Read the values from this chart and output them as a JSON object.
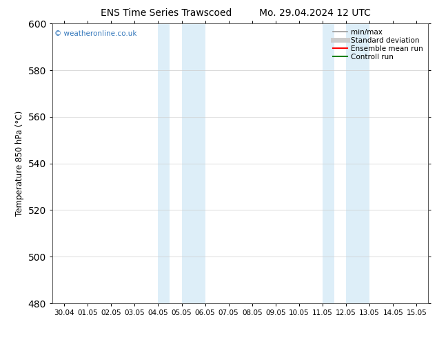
{
  "title_left": "ENS Time Series Trawscoed",
  "title_right": "Mo. 29.04.2024 12 UTC",
  "ylabel": "Temperature 850 hPa (°C)",
  "ylim": [
    480,
    600
  ],
  "yticks": [
    480,
    500,
    520,
    540,
    560,
    580,
    600
  ],
  "x_tick_labels": [
    "30.04",
    "01.05",
    "02.05",
    "03.05",
    "04.05",
    "05.05",
    "06.05",
    "07.05",
    "08.05",
    "09.05",
    "10.05",
    "11.05",
    "12.05",
    "13.05",
    "14.05",
    "15.05"
  ],
  "shaded_regions": [
    [
      4.0,
      4.5,
      "left"
    ],
    [
      5.0,
      6.0,
      "right"
    ],
    [
      11.0,
      11.5,
      "left"
    ],
    [
      12.0,
      13.0,
      "right"
    ]
  ],
  "shade_color": "#ddeef8",
  "watermark": "© weatheronline.co.uk",
  "watermark_color": "#3377bb",
  "legend_items": [
    {
      "label": "min/max",
      "color": "#999999",
      "lw": 1.2,
      "style": "solid"
    },
    {
      "label": "Standard deviation",
      "color": "#cccccc",
      "lw": 5,
      "style": "solid"
    },
    {
      "label": "Ensemble mean run",
      "color": "#ff0000",
      "lw": 1.5,
      "style": "solid"
    },
    {
      "label": "Controll run",
      "color": "#008000",
      "lw": 1.5,
      "style": "solid"
    }
  ],
  "bg_color": "#ffffff",
  "grid_color": "#cccccc",
  "title_fontsize": 10,
  "tick_fontsize": 7.5,
  "ylabel_fontsize": 8.5,
  "watermark_fontsize": 7.5,
  "legend_fontsize": 7.5
}
